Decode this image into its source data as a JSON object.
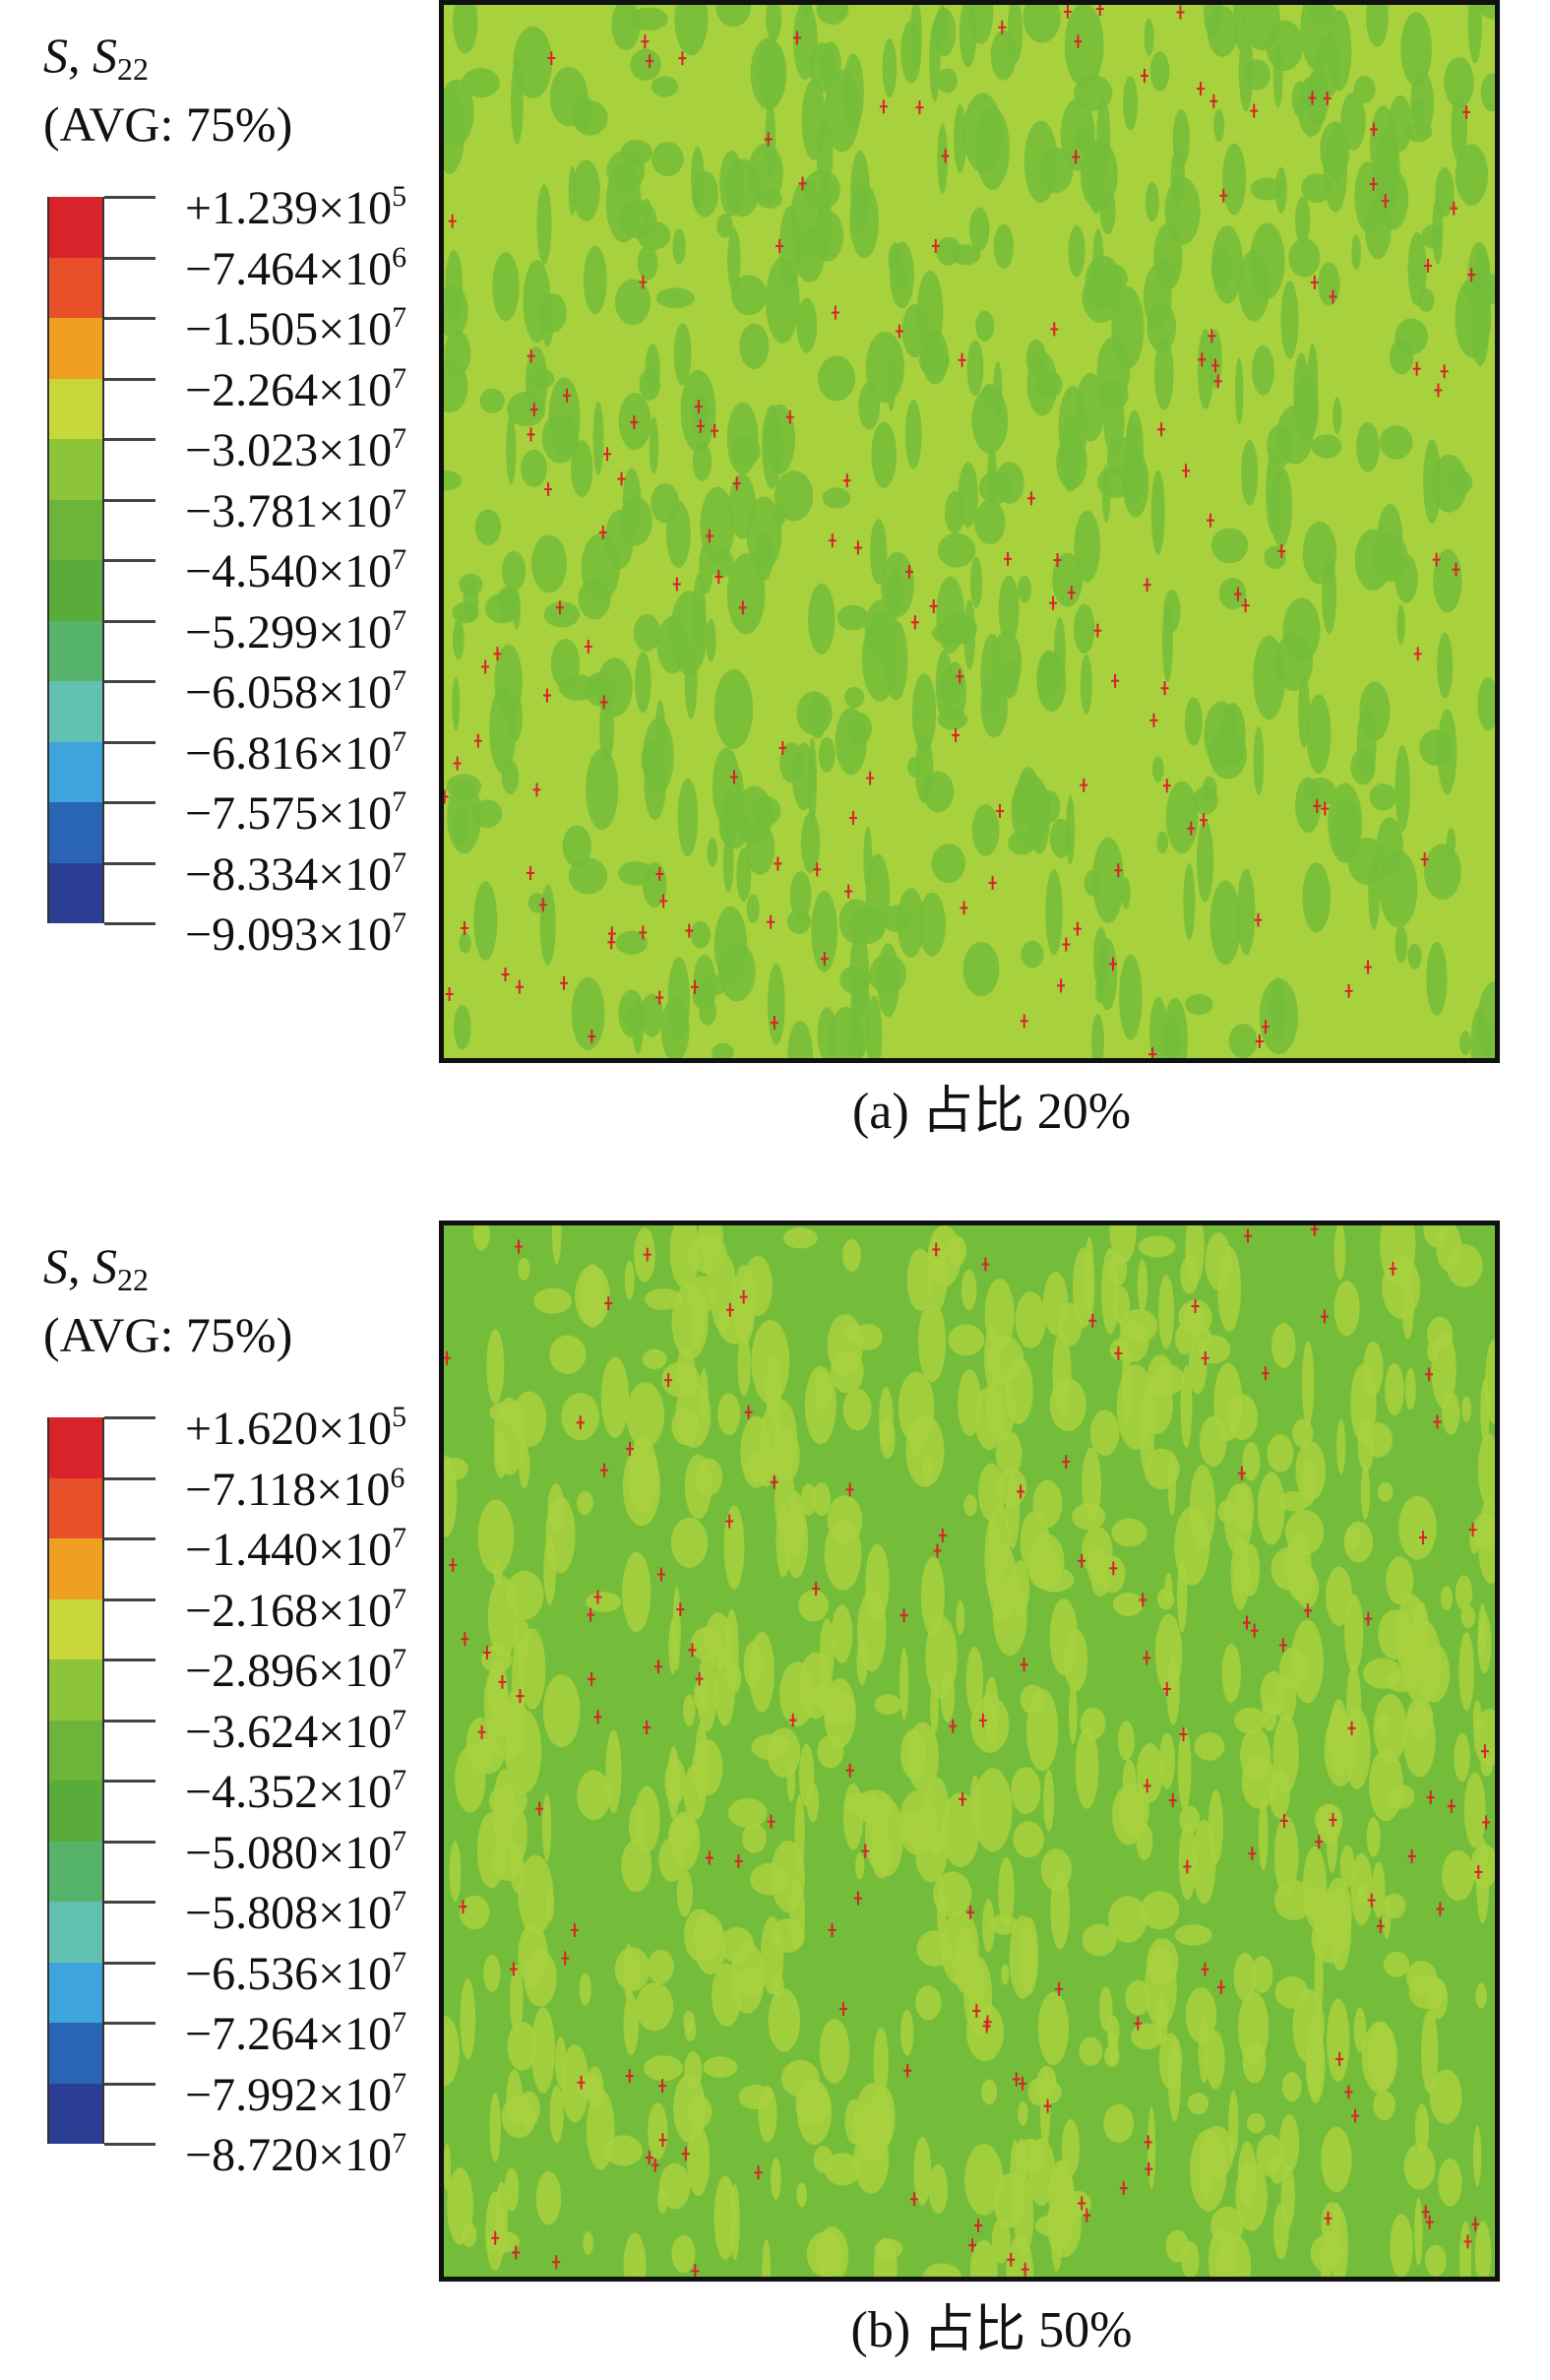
{
  "panels": [
    {
      "id": "a",
      "legend": {
        "variable": "S",
        "component": "S",
        "component_sub": "22",
        "averaging": "(AVG: 75%)",
        "ticks": [
          {
            "mantissa": "+1.239",
            "exp": "5"
          },
          {
            "mantissa": "−7.464",
            "exp": "6"
          },
          {
            "mantissa": "−1.505",
            "exp": "7"
          },
          {
            "mantissa": "−2.264",
            "exp": "7"
          },
          {
            "mantissa": "−3.023",
            "exp": "7"
          },
          {
            "mantissa": "−3.781",
            "exp": "7"
          },
          {
            "mantissa": "−4.540",
            "exp": "7"
          },
          {
            "mantissa": "−5.299",
            "exp": "7"
          },
          {
            "mantissa": "−6.058",
            "exp": "7"
          },
          {
            "mantissa": "−6.816",
            "exp": "7"
          },
          {
            "mantissa": "−7.575",
            "exp": "7"
          },
          {
            "mantissa": "−8.334",
            "exp": "7"
          },
          {
            "mantissa": "−9.093",
            "exp": "7"
          }
        ]
      },
      "caption": "(a) 占比 20%",
      "field_base_color": "#a8d13e",
      "field_second_color": "#74bd3a"
    },
    {
      "id": "b",
      "legend": {
        "variable": "S",
        "component": "S",
        "component_sub": "22",
        "averaging": "(AVG: 75%)",
        "ticks": [
          {
            "mantissa": "+1.620",
            "exp": "5"
          },
          {
            "mantissa": "−7.118",
            "exp": "6"
          },
          {
            "mantissa": "−1.440",
            "exp": "7"
          },
          {
            "mantissa": "−2.168",
            "exp": "7"
          },
          {
            "mantissa": "−2.896",
            "exp": "7"
          },
          {
            "mantissa": "−3.624",
            "exp": "7"
          },
          {
            "mantissa": "−4.352",
            "exp": "7"
          },
          {
            "mantissa": "−5.080",
            "exp": "7"
          },
          {
            "mantissa": "−5.808",
            "exp": "7"
          },
          {
            "mantissa": "−6.536",
            "exp": "7"
          },
          {
            "mantissa": "−7.264",
            "exp": "7"
          },
          {
            "mantissa": "−7.992",
            "exp": "7"
          },
          {
            "mantissa": "−8.720",
            "exp": "7"
          }
        ]
      },
      "caption": "(b) 占比 50%",
      "field_base_color": "#74bd3a",
      "field_second_color": "#a8d13e"
    }
  ],
  "colormap": [
    "#d8232a",
    "#e8502a",
    "#f0a020",
    "#c8d83a",
    "#8cc43a",
    "#6cb43a",
    "#5aac3a",
    "#56b46a",
    "#62c0b0",
    "#3ea4dc",
    "#2a64b4",
    "#2c3e94"
  ],
  "hotspot_color": "#d8232a"
}
